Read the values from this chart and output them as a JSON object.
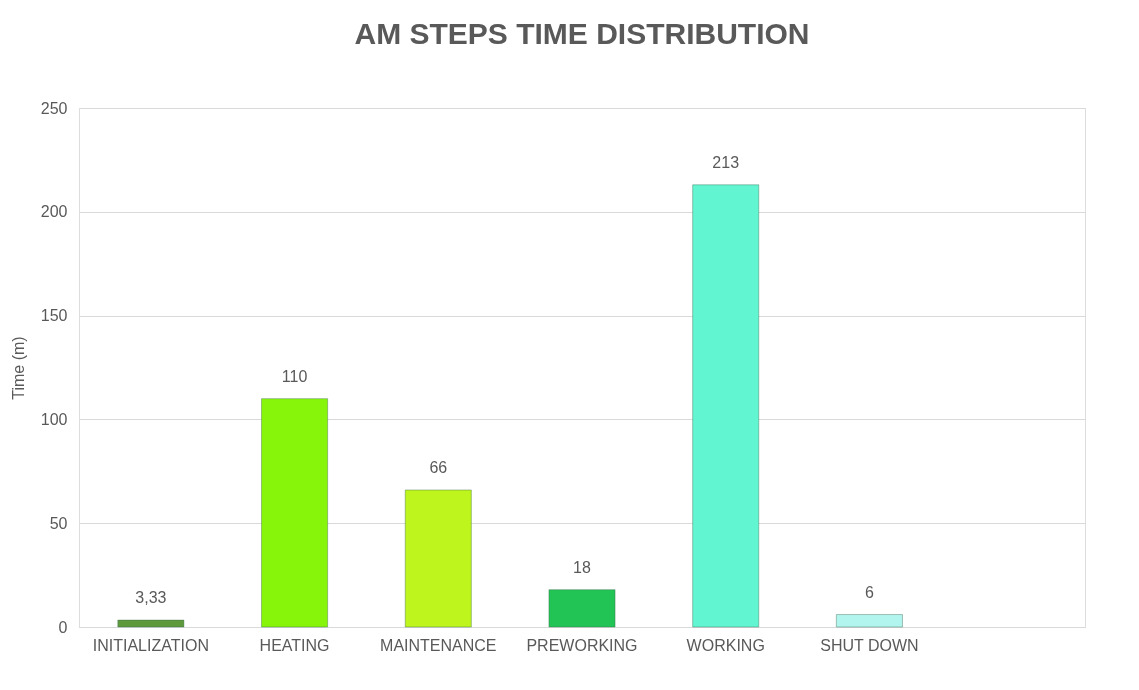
{
  "chart_data": {
    "type": "bar",
    "title": "AM STEPS TIME DISTRIBUTION",
    "ylabel": "Time (m)",
    "categories": [
      "INITIALIZATION",
      "HEATING",
      "MAINTENANCE",
      "PREWORKING",
      "WORKING",
      "SHUT DOWN",
      null
    ],
    "values": [
      3.33,
      110,
      66,
      18,
      213,
      6,
      null
    ],
    "colors": [
      "#5e9a3c",
      "#86f50a",
      "#bdf51c",
      "#22c455",
      "#62f5d2",
      "#b2f5ee",
      "#cccccc"
    ],
    "value_labels": [
      "3,33",
      "110",
      "66",
      "18",
      "213",
      "6",
      null
    ],
    "ylim": [
      0,
      250
    ],
    "yticks": [
      0,
      50,
      100,
      150,
      200,
      250
    ],
    "grid": "y",
    "legend": false
  }
}
